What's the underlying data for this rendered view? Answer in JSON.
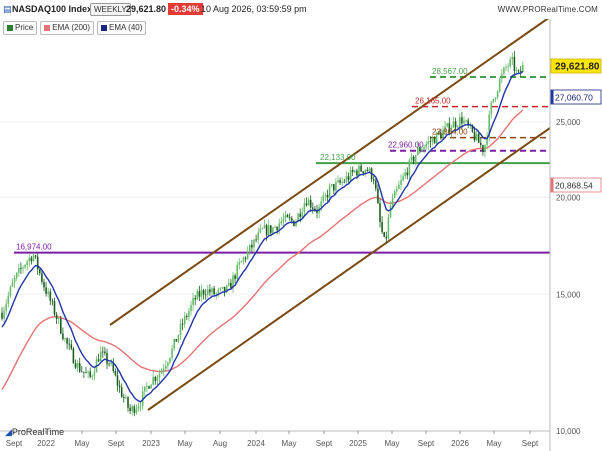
{
  "header": {
    "symbol": "NASDAQ100 Index",
    "period": "WEEKLY",
    "last_price": "29,621.80",
    "change": "-0.34%",
    "datetime": "10 Aug 2026, 03:59:59 pm",
    "brand": "WWW.PRORealTime.COM"
  },
  "legend": [
    {
      "label": "Price",
      "color": "#2e7d32"
    },
    {
      "label": "EMA (200)",
      "color": "#e57373"
    },
    {
      "label": "EMA (40)",
      "color": "#1a237e"
    }
  ],
  "watermark": "ProRealTime",
  "colors": {
    "up_candle": "#66bb6a",
    "down_candle": "#1b5e20",
    "ema200": "#e57373",
    "ema40": "#1f35a8",
    "channel": "#7b4a12",
    "support_purple": "#7b1fa2",
    "support_green": "#43a047",
    "resistance_red": "#c62828",
    "mid_brown": "#8b4513"
  },
  "chart_data": {
    "type": "candlestick",
    "title": "NASDAQ100 Index",
    "x_tick_labels": [
      "Sept",
      "2022",
      "May",
      "Sept",
      "2023",
      "May",
      "Aug",
      "2024",
      "May",
      "Sept",
      "2025",
      "May",
      "Sept",
      "2026",
      "May",
      "Sept"
    ],
    "y_tick_labels": [
      "10,000",
      "15,000",
      "20,000",
      "25,000"
    ],
    "ylim": [
      10000,
      30500
    ],
    "y_scale": "log",
    "price_labels": [
      {
        "label": "29,621.80",
        "value": 29621.8,
        "style": "last"
      },
      {
        "label": "27,060.70",
        "value": 27060.7,
        "style": "ema40"
      },
      {
        "label": "20,868.54",
        "value": 20868.54,
        "style": "ema200"
      }
    ],
    "horizontal_levels": [
      {
        "label": "16,974.00",
        "value": 16974,
        "color": "purple"
      },
      {
        "label": "22,133.00",
        "value": 22133,
        "color": "green"
      },
      {
        "label": "22,960.00",
        "value": 22960,
        "color": "purple"
      },
      {
        "label": "23,864.00",
        "value": 23864,
        "color": "brown"
      },
      {
        "label": "26,165.00",
        "value": 26165,
        "color": "red"
      },
      {
        "label": "28,567.00",
        "value": 28567,
        "color": "green"
      }
    ],
    "channel": "ascending",
    "series": [
      {
        "name": "EMA (200)"
      },
      {
        "name": "EMA (40)"
      }
    ]
  }
}
